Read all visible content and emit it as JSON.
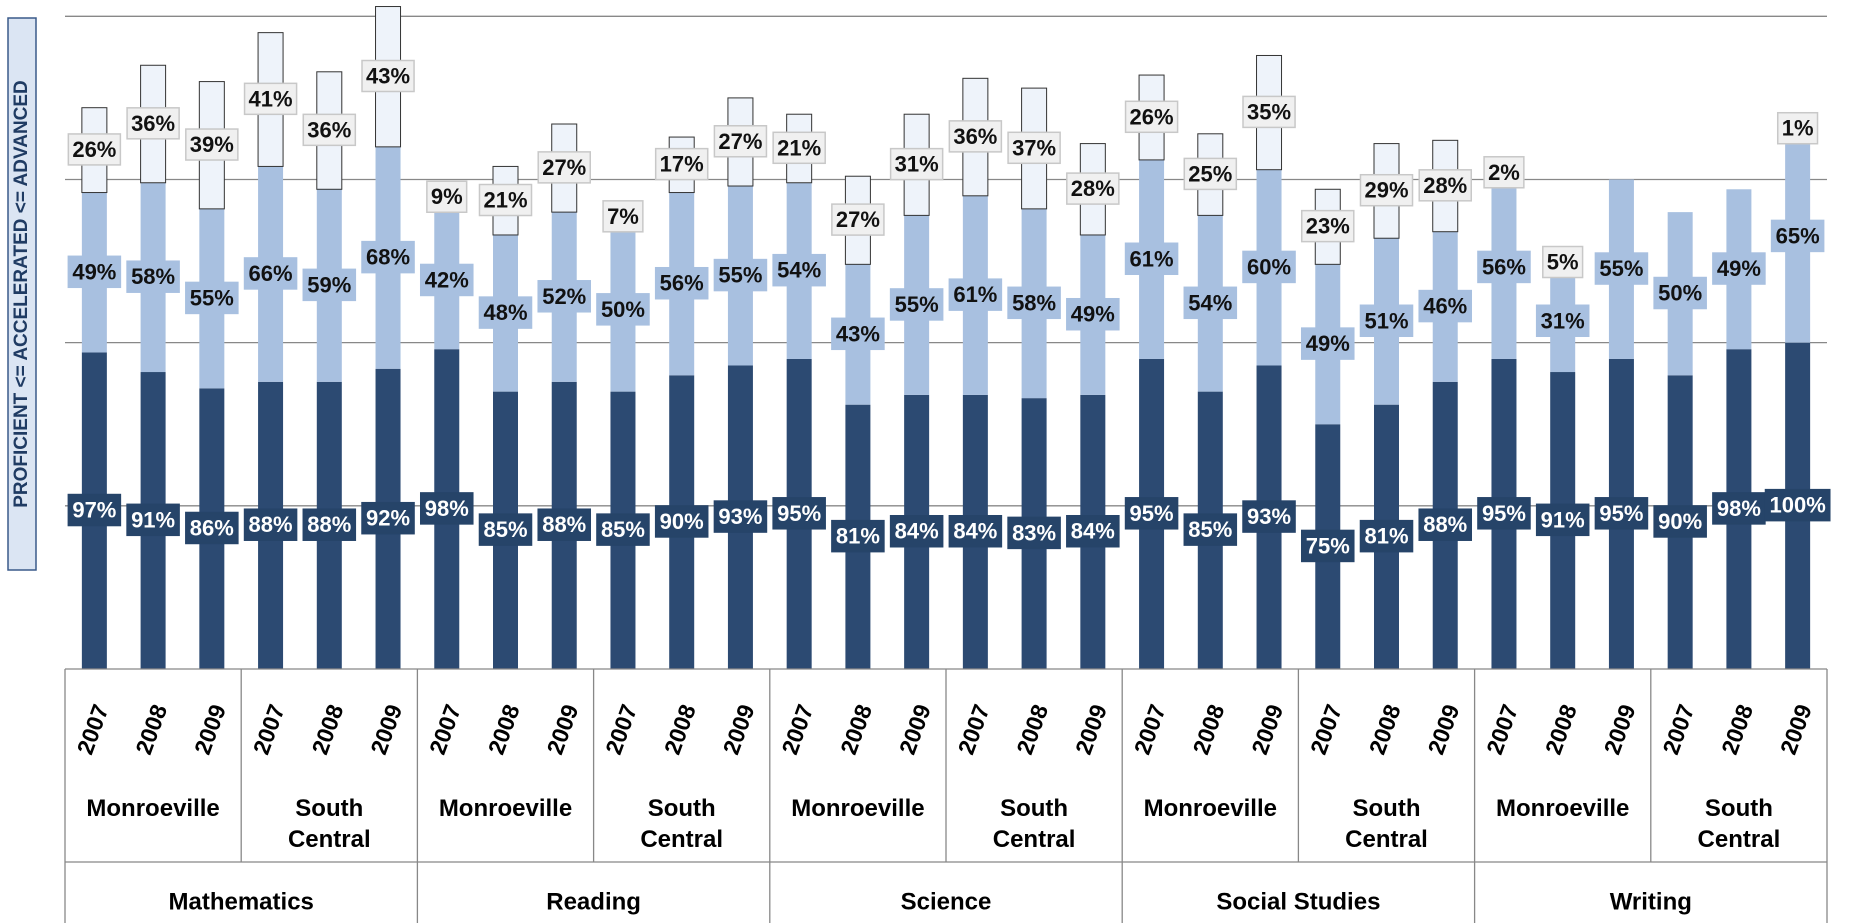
{
  "chart_data": {
    "type": "stacked_bar",
    "y_label": "PROFICIENT <= ACCELERATED <= ADVANCED",
    "categories": [
      "2007",
      "2008",
      "2009",
      "2007",
      "2008",
      "2009",
      "2007",
      "2008",
      "2009",
      "2007",
      "2008",
      "2009",
      "2007",
      "2008",
      "2009",
      "2007",
      "2008",
      "2009",
      "2007",
      "2008",
      "2009",
      "2007",
      "2008",
      "2009",
      "2007",
      "2008",
      "2009",
      "2007",
      "2008",
      "2009"
    ],
    "schools": [
      "Monroeville",
      "South Central",
      "Monroeville",
      "South Central",
      "Monroeville",
      "South Central",
      "Monroeville",
      "South Central",
      "Monroeville",
      "South Central"
    ],
    "subjects": [
      "Mathematics",
      "Reading",
      "Science",
      "Social Studies",
      "Writing"
    ],
    "ylim": [
      0,
      205
    ],
    "yticks": [
      50,
      100,
      150,
      200
    ],
    "grid": true,
    "series": [
      {
        "name": "Proficient",
        "color": "#2c4a72",
        "values": [
          97,
          91,
          86,
          88,
          88,
          92,
          98,
          85,
          88,
          85,
          90,
          93,
          95,
          81,
          84,
          84,
          83,
          84,
          95,
          85,
          93,
          75,
          81,
          88,
          95,
          91,
          95,
          90,
          98,
          100
        ],
        "value_labels": [
          "97%",
          "91%",
          "86%",
          "88%",
          "88%",
          "92%",
          "98%",
          "85%",
          "88%",
          "85%",
          "90%",
          "93%",
          "95%",
          "81%",
          "84%",
          "84%",
          "83%",
          "84%",
          "95%",
          "85%",
          "93%",
          "75%",
          "81%",
          "88%",
          "95%",
          "91%",
          "95%",
          "90%",
          "98%",
          "100%"
        ]
      },
      {
        "name": "Accelerated",
        "color": "#a8c0e0",
        "values": [
          49,
          58,
          55,
          66,
          59,
          68,
          42,
          48,
          52,
          50,
          56,
          55,
          54,
          43,
          55,
          61,
          58,
          49,
          61,
          54,
          60,
          49,
          51,
          46,
          56,
          31,
          55,
          50,
          49,
          65
        ],
        "value_labels": [
          "49%",
          "58%",
          "55%",
          "66%",
          "59%",
          "68%",
          "42%",
          "48%",
          "52%",
          "50%",
          "56%",
          "55%",
          "54%",
          "43%",
          "55%",
          "61%",
          "58%",
          "49%",
          "61%",
          "54%",
          "60%",
          "49%",
          "51%",
          "46%",
          "56%",
          "31%",
          "55%",
          "50%",
          "49%",
          "65%"
        ]
      },
      {
        "name": "Advanced",
        "color": "#eef3fa",
        "values": [
          26,
          36,
          39,
          41,
          36,
          43,
          9,
          21,
          27,
          7,
          17,
          27,
          21,
          27,
          31,
          36,
          37,
          28,
          26,
          25,
          35,
          23,
          29,
          28,
          2,
          5,
          null,
          null,
          null,
          1
        ],
        "value_labels": [
          "26%",
          "36%",
          "39%",
          "41%",
          "36%",
          "43%",
          "9%",
          "21%",
          "27%",
          "7%",
          "17%",
          "27%",
          "21%",
          "27%",
          "31%",
          "36%",
          "37%",
          "28%",
          "26%",
          "25%",
          "35%",
          "23%",
          "29%",
          "28%",
          "2%",
          "5%",
          null,
          null,
          null,
          "1%"
        ]
      }
    ]
  }
}
